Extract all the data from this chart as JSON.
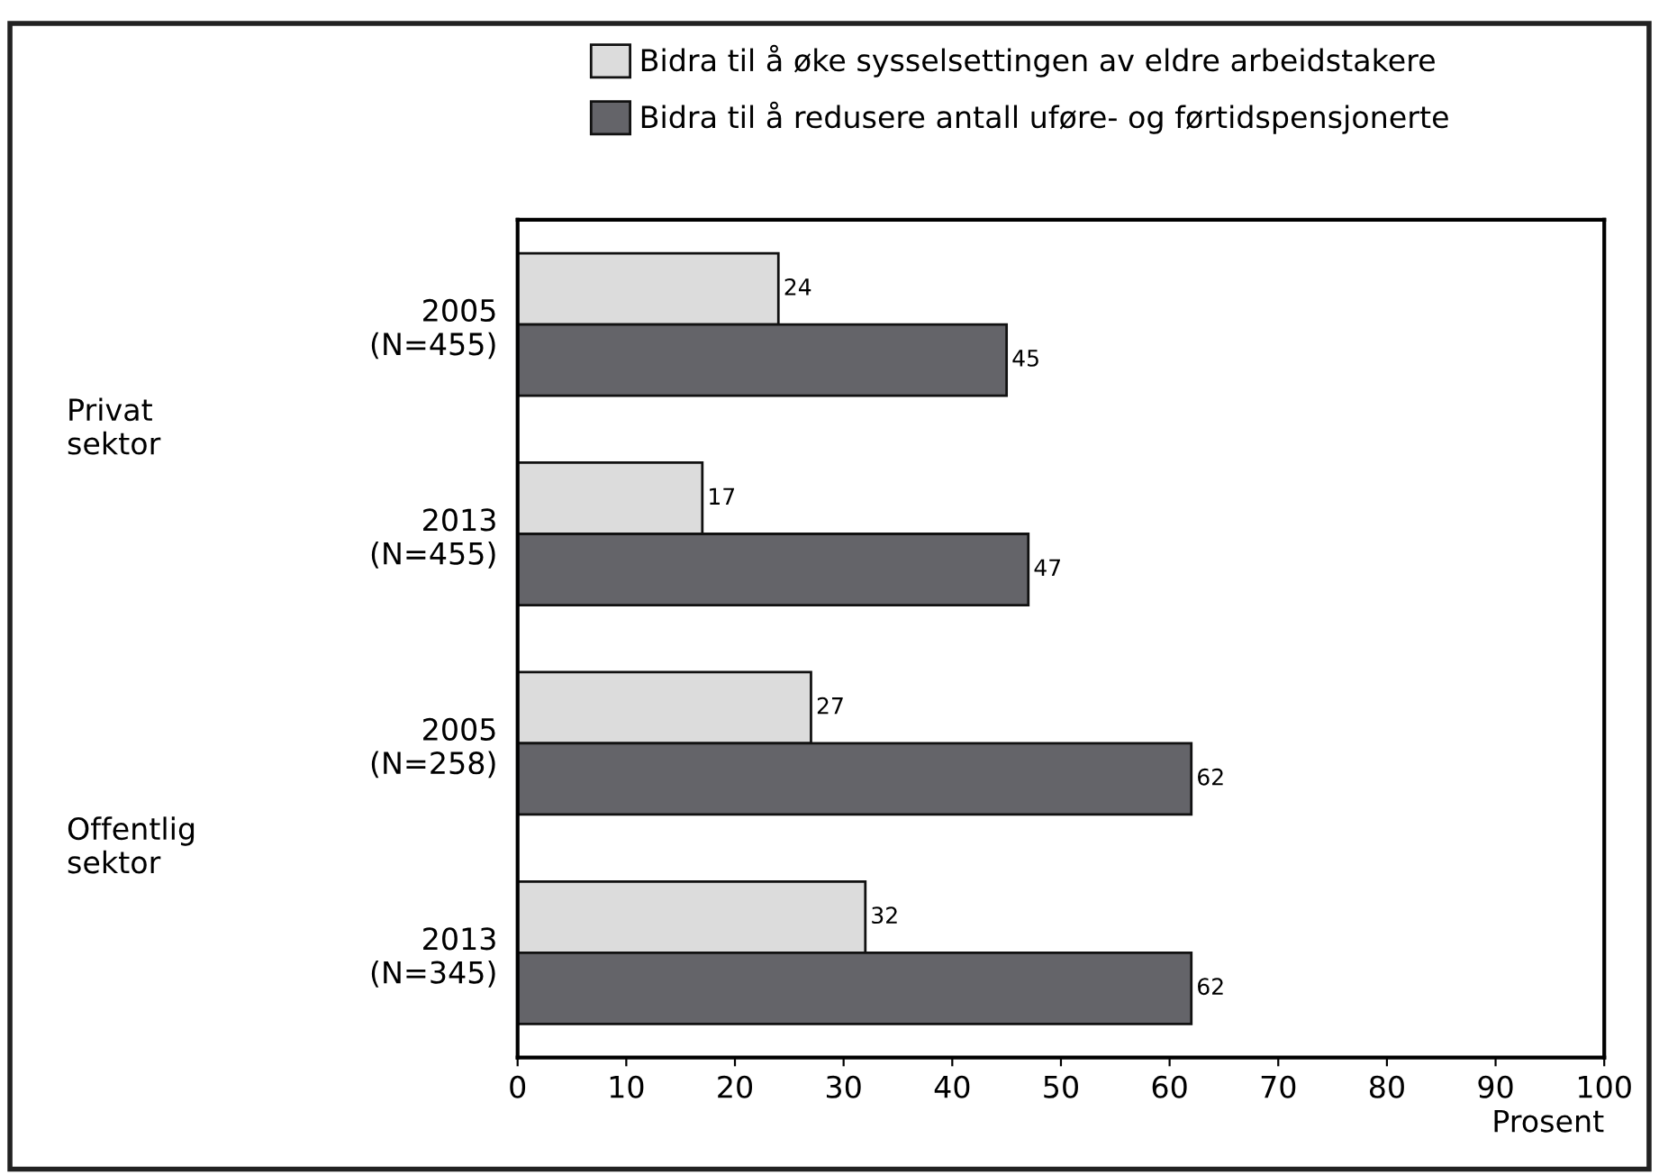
{
  "chart_data": {
    "type": "bar",
    "orientation": "horizontal",
    "xlabel": "Prosent",
    "categories": [
      "2005\n(N=455)",
      "2013\n(N=455)",
      "2005\n(N=258)",
      "2013\n(N=345)"
    ],
    "series": [
      {
        "name": "Bidra til å øke sysselsettingen av eldre arbeidstakere",
        "color": "#dcdcdc",
        "values": [
          24,
          17,
          27,
          32
        ]
      },
      {
        "name": "Bidra til å redusere antall uføre- og førtidspensjonerte",
        "color": "#646469",
        "values": [
          45,
          47,
          62,
          62
        ]
      }
    ],
    "annotations": [
      "Privat\nsektor",
      "Offentlig\nsektor"
    ],
    "xlim": [
      0,
      100
    ],
    "xticks": [
      0,
      10,
      20,
      30,
      40,
      50,
      60,
      70,
      80,
      90,
      100
    ],
    "data_labels": true,
    "grid": false,
    "legend": "top"
  }
}
